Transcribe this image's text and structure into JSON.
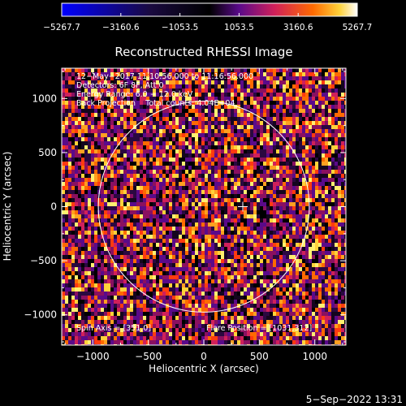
{
  "chart_data": {
    "type": "heatmap",
    "title": "Reconstructed RHESSI Image",
    "xlabel": "Heliocentric X (arcsec)",
    "ylabel": "Heliocentric Y (arcsec)",
    "xlim": [
      -1280,
      1280
    ],
    "ylim": [
      -1280,
      1280
    ],
    "x_ticks": [
      -1000,
      -500,
      0,
      500,
      1000
    ],
    "y_ticks": [
      -1000,
      -500,
      0,
      500,
      1000
    ],
    "x_tick_labels": [
      "−1000",
      "−500",
      "0",
      "500",
      "1000"
    ],
    "y_tick_labels": [
      "−1000",
      "−500",
      "0",
      "500",
      "1000"
    ],
    "colorbar": {
      "min": -5267.7,
      "max": 5267.7,
      "tick_labels": [
        "−5267.7",
        "−3160.6",
        "−1053.5",
        "1053.5",
        "3160.6",
        "5267.7"
      ],
      "tick_values": [
        -5267.7,
        -3160.6,
        -1053.5,
        1053.5,
        3160.6,
        5267.7
      ],
      "colormap": [
        "#0000ff",
        "#1a0a40",
        "#000000",
        "#5a0a8a",
        "#d0205a",
        "#ff6a00",
        "#ffd23a",
        "#ffffff"
      ]
    },
    "annotations": [
      "12−May−2017 11:10:56.000 to 11:16:56.000",
      "Detectors: 6F 8F, Att 0",
      "Energy Range: 6.0 − 12.0 keV",
      "Back Projection    Total counts: 4.04E+04"
    ],
    "spin_axis": "Spin Axis = [351,0]",
    "flare_position": "Flare Position = [1031,312]",
    "solar_limb": {
      "center": [
        0,
        0
      ],
      "radius": 950
    },
    "cross_marker": [
      351,
      0
    ],
    "grid": false,
    "legend": "none"
  },
  "timestamp": "5−Sep−2022 13:31"
}
